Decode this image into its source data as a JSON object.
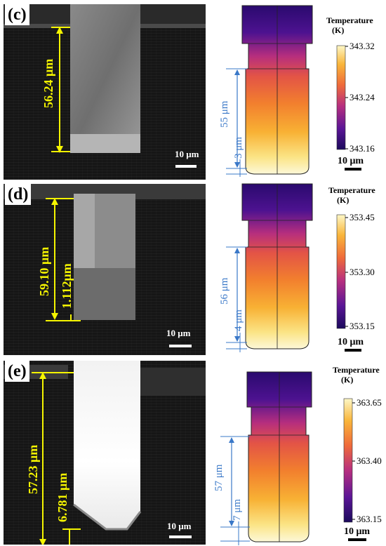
{
  "panels": [
    {
      "letter": "(c)",
      "sem_depth": "56.24 μm",
      "sem_bottom": "",
      "sem_scale": "10 μm",
      "sim_depth": "55 μm",
      "sim_bottom": "3 μm",
      "sim_scale": "10 μm",
      "colorbar_title": "Temperature",
      "colorbar_unit": "(K)",
      "ticks": [
        "343.32",
        "343.24",
        "343.16"
      ]
    },
    {
      "letter": "(d)",
      "sem_depth": "59.10 μm",
      "sem_bottom": "1.112μm",
      "sem_scale": "10 μm",
      "sim_depth": "56 μm",
      "sim_bottom": "4 μm",
      "sim_scale": "10 μm",
      "colorbar_title": "Temperature",
      "colorbar_unit": "(K)",
      "ticks": [
        "353.45",
        "353.30",
        "353.15"
      ]
    },
    {
      "letter": "(e)",
      "sem_depth": "57.23 μm",
      "sem_bottom": "6.781 μm",
      "sem_scale": "10 μm",
      "sim_depth": "57 μm",
      "sim_bottom": "7 μm",
      "sim_scale": "10 μm",
      "colorbar_title": "Temperature",
      "colorbar_unit": "(K)",
      "ticks": [
        "363.65",
        "363.40",
        "363.15"
      ]
    }
  ],
  "colors": {
    "dimension_yellow": "#f5f500",
    "dimension_blue": "#3a78c8",
    "sem_background": "#161616",
    "colormap": [
      "#2a0a6e",
      "#7a1ea0",
      "#d23a6a",
      "#f57f2a",
      "#f9c33b",
      "#fdf7c6"
    ]
  }
}
